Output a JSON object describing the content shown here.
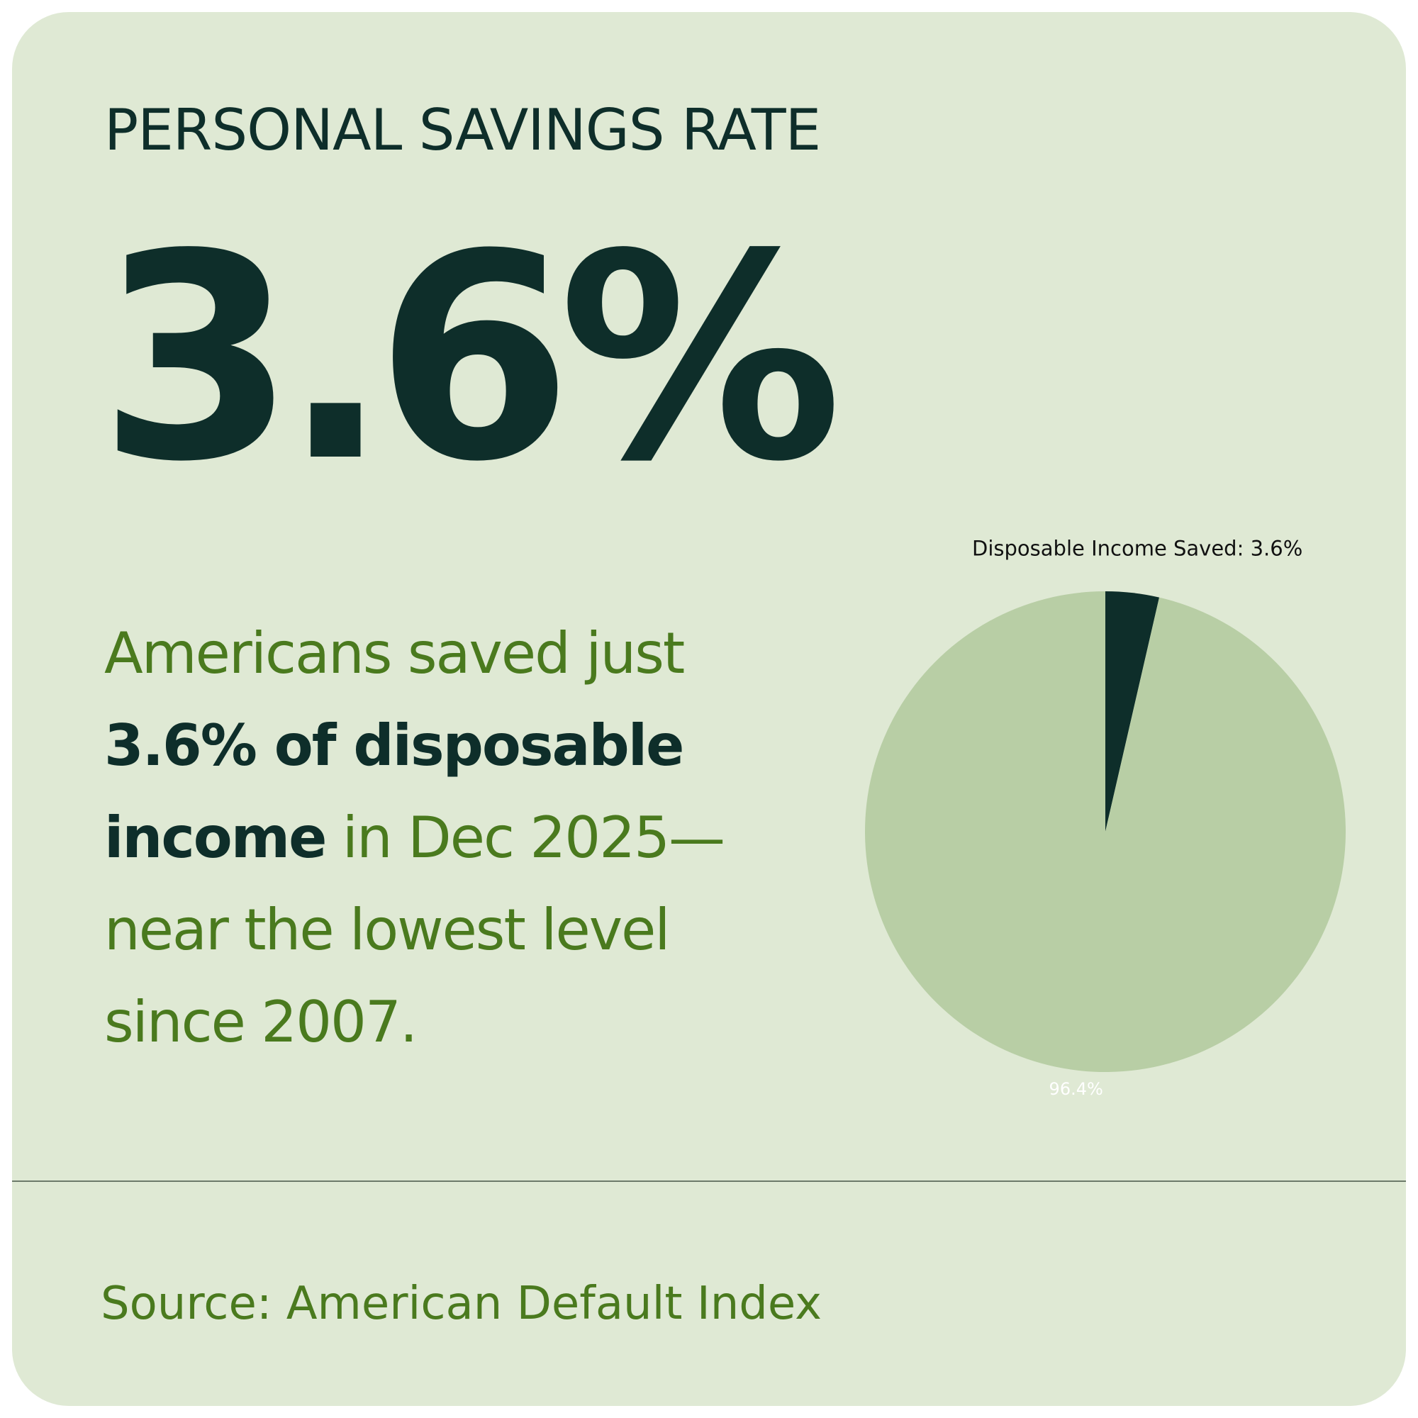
{
  "header": {
    "title": "PERSONAL SAVINGS RATE"
  },
  "stat": "3.6%",
  "description": [
    {
      "text": "Americans saved just ",
      "bold": false
    },
    {
      "text": "3.6% of disposable income",
      "bold": true
    },
    {
      "text": " in Dec 2025—near the lowest level since 2007.",
      "bold": false
    }
  ],
  "chart_data": {
    "type": "pie",
    "values": [
      3.6,
      96.4
    ],
    "value_labels": [
      "Disposable Income Saved: 3.6%",
      "96.4%"
    ],
    "colors": [
      "#0e2e2a",
      "#b8cea5"
    ],
    "label_colors": [
      "#111111",
      "#ffffff"
    ]
  },
  "source": "Source: American Default Index"
}
